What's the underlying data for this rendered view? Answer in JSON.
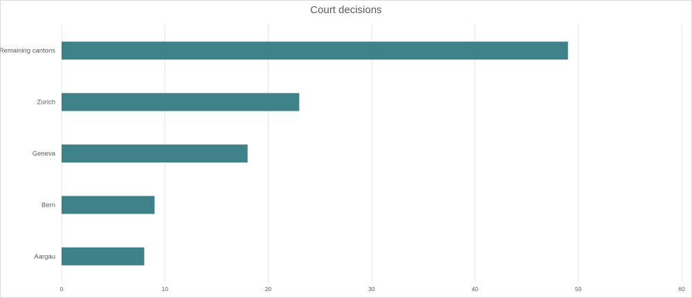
{
  "chart_data": {
    "type": "bar",
    "orientation": "horizontal",
    "title": "Court decisions",
    "xlabel": "",
    "ylabel": "",
    "categories": [
      "Remaining cantons",
      "Zurich",
      "Geneva",
      "Bern",
      "Aargau"
    ],
    "values": [
      49,
      23,
      18,
      9,
      8
    ],
    "xlim": [
      0,
      60
    ],
    "xticks": [
      0,
      10,
      20,
      30,
      40,
      50,
      60
    ],
    "grid": true,
    "legend": "none",
    "bar_color": "#3e8189"
  }
}
